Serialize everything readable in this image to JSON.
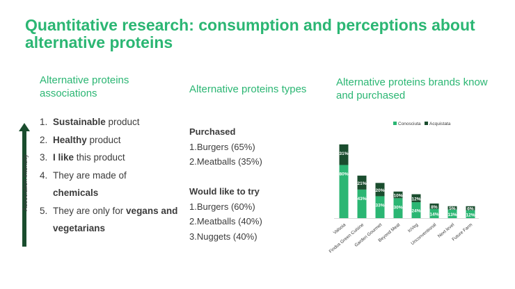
{
  "title": "Quantitative research: consumption and perceptions about alternative proteins",
  "associations": {
    "heading": "Alternative proteins associations",
    "axis_label": "Association intensity",
    "items": [
      {
        "num": "1.",
        "bold": "Sustainable",
        "rest": " product"
      },
      {
        "num": "2.",
        "bold": "Healthy",
        "rest": " product"
      },
      {
        "num": "3.",
        "bold": "I like",
        "rest": " this product"
      },
      {
        "num": "4.",
        "pre": "They are made of ",
        "bold": "chemicals"
      },
      {
        "num": "5.",
        "pre": "They are only for ",
        "bold": "vegans and vegetarians"
      }
    ]
  },
  "types": {
    "heading": "Alternative proteins types",
    "purchased_label": "Purchased",
    "purchased": [
      "1.Burgers (65%)",
      "2.Meatballs (35%)"
    ],
    "would_try_label": "Would like to try",
    "would_try": [
      "1.Burgers (60%)",
      "2.Meatballs (40%)",
      "3.Nuggets (40%)"
    ]
  },
  "brands": {
    "heading": "Alternative proteins brands know and purchased"
  },
  "chart_data": {
    "type": "bar",
    "stacked": true,
    "categories": [
      "Valsoia",
      "Findus Green Cuisine",
      "Garden Gourmet",
      "Beyond Meat",
      "IoVeg",
      "Unconventional",
      "Next level",
      "Future Farm"
    ],
    "series": [
      {
        "name": "Conosciuta",
        "values": [
          80,
          43,
          33,
          30,
          24,
          14,
          13,
          12
        ],
        "labels": [
          "80%",
          "43%",
          "33%",
          "30%",
          "24%",
          "14%",
          "13%",
          "12%"
        ],
        "color": "#2bb673"
      },
      {
        "name": "Acquistata",
        "values": [
          31,
          21,
          20,
          10,
          12,
          8,
          5,
          6
        ],
        "labels": [
          "31%",
          "21%",
          "20%",
          "10%",
          "12%",
          "8%",
          "5%",
          "6%"
        ],
        "color": "#1a4d2e"
      }
    ],
    "legend_position": "top",
    "grid": false,
    "ylim": [
      0,
      115
    ],
    "colors": {
      "accent": "#2bb673",
      "dark": "#1a4d2e"
    }
  }
}
